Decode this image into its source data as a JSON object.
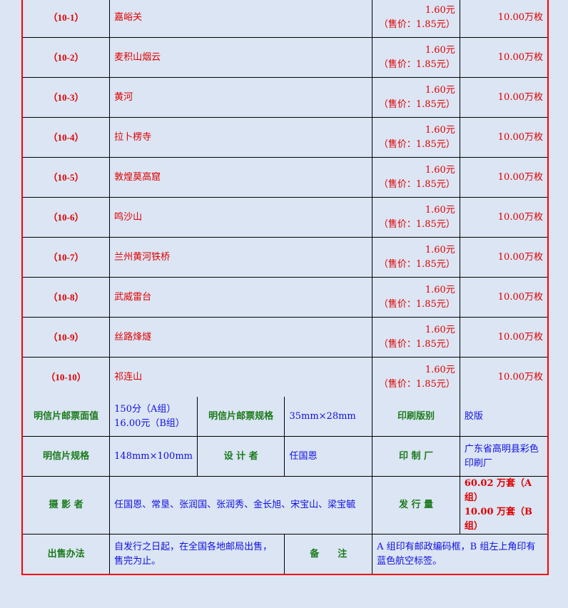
{
  "stamps": [
    {
      "no": "（10-1）",
      "name": "嘉峪关",
      "face": "1.60元",
      "sale": "（售价：1.85元）",
      "qty": "10.00万枚"
    },
    {
      "no": "（10-2）",
      "name": "麦积山烟云",
      "face": "1.60元",
      "sale": "（售价：1.85元）",
      "qty": "10.00万枚"
    },
    {
      "no": "（10-3）",
      "name": "黄河",
      "face": "1.60元",
      "sale": "（售价：1.85元）",
      "qty": "10.00万枚"
    },
    {
      "no": "（10-4）",
      "name": "拉卜楞寺",
      "face": "1.60元",
      "sale": "（售价：1.85元）",
      "qty": "10.00万枚"
    },
    {
      "no": "（10-5）",
      "name": "敦煌莫高窟",
      "face": "1.60元",
      "sale": "（售价：1.85元）",
      "qty": "10.00万枚"
    },
    {
      "no": "（10-6）",
      "name": "鸣沙山",
      "face": "1.60元",
      "sale": "（售价：1.85元）",
      "qty": "10.00万枚"
    },
    {
      "no": "（10-7）",
      "name": "兰州黄河铁桥",
      "face": "1.60元",
      "sale": "（售价：1.85元）",
      "qty": "10.00万枚"
    },
    {
      "no": "（10-8）",
      "name": "武威雷台",
      "face": "1.60元",
      "sale": "（售价：1.85元）",
      "qty": "10.00万枚"
    },
    {
      "no": "（10-9）",
      "name": "丝路烽燧",
      "face": "1.60元",
      "sale": "（售价：1.85元）",
      "qty": "10.00万枚"
    },
    {
      "no": "（10-10）",
      "name": "祁连山",
      "face": "1.60元",
      "sale": "（售价：1.85元）",
      "qty": "10.00万枚"
    }
  ],
  "info": {
    "stamp_face_label": "明信片邮票面值",
    "stamp_face_a": "150分（A组）",
    "stamp_face_b": "16.00元（B组）",
    "stamp_size_label": "明信片邮票规格",
    "stamp_size": "35mm×28mm",
    "print_label": "印刷版别",
    "print": "胶版",
    "card_size_label": "明信片规格",
    "card_size": "148mm×100mm",
    "designer_label": "设 计 者",
    "designer": "任国恩",
    "printer_label": "印 制 厂",
    "printer": "广东省高明县彩色印刷厂",
    "photo_label": "摄 影 者",
    "photo": "任国恩、常垦、张润国、张润秀、金长旭、宋宝山、梁宝毓",
    "issue_label": "发 行 量",
    "issue_a": "60.02 万套（A 组）",
    "issue_b": "10.00 万套（B 组）",
    "sale_label": "出售办法",
    "sale": "自发行之日起，在全国各地邮局出售，售完为止。",
    "note_label": "备　　注",
    "note": "A 组印有邮政编码框，B 组左上角印有蓝色航空标签。"
  }
}
